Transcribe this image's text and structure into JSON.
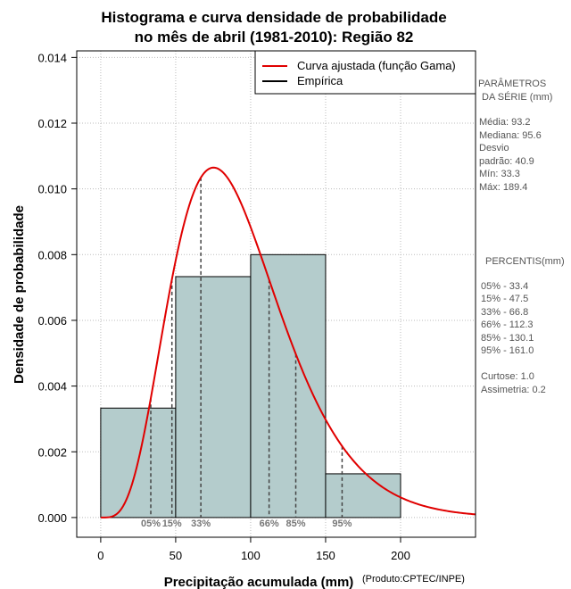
{
  "chart_data": {
    "type": "bar",
    "title_line1": "Histograma e curva densidade de probabilidade",
    "title_line2": "no mês de abril (1981-2010): Região 82",
    "xlabel": "Precipitação acumulada (mm)",
    "ylabel": "Densidade de probabilidade",
    "credit": "(Produto:CPTEC/INPE)",
    "xlim": [
      -16,
      250
    ],
    "ylim": [
      -0.0006,
      0.0142
    ],
    "x_ticks": [
      0,
      50,
      100,
      150,
      200
    ],
    "y_ticks": [
      0.0,
      0.002,
      0.004,
      0.006,
      0.008,
      0.01,
      0.012,
      0.014
    ],
    "y_tick_labels": [
      "0.000",
      "0.002",
      "0.004",
      "0.006",
      "0.008",
      "0.010",
      "0.012",
      "0.014"
    ],
    "grid": true,
    "legend_position": "top-right",
    "legend": [
      {
        "label": "Curva ajustada (função Gama)",
        "color": "#e00000"
      },
      {
        "label": "Empírica",
        "color": "#000000"
      }
    ],
    "histogram": {
      "bin_edges": [
        0,
        50,
        100,
        150,
        200
      ],
      "values": [
        0.00333,
        0.00733,
        0.008,
        0.00133
      ],
      "fill_color": "#b4cccc"
    },
    "gamma_curve": {
      "shape": 5.2,
      "mean": 93.2,
      "color": "#e00000"
    },
    "percentile_lines": [
      {
        "label": "05%",
        "x": 33.4
      },
      {
        "label": "15%",
        "x": 47.5
      },
      {
        "label": "33%",
        "x": 66.8
      },
      {
        "label": "66%",
        "x": 112.3
      },
      {
        "label": "85%",
        "x": 130.1
      },
      {
        "label": "95%",
        "x": 161.0
      }
    ]
  },
  "sidebar": {
    "params_title_1": "PARÂMETROS",
    "params_title_2": "DA SÉRIE (mm)",
    "media": "Média:  93.2",
    "mediana": "Mediana:  95.6",
    "desvio_1": "Desvio",
    "desvio_2": "padrão:  40.9",
    "min": "Mín:  33.3",
    "max": "Máx:  189.4",
    "percentis_title": "PERCENTIS(mm)",
    "percentis": [
      "05% -  33.4",
      "15% -  47.5",
      "33% -  66.8",
      "66% -  112.3",
      "85% -  130.1",
      "95% -  161.0"
    ],
    "curtose": "Curtose:  1.0",
    "assimetria": "Assimetria:  0.2"
  }
}
